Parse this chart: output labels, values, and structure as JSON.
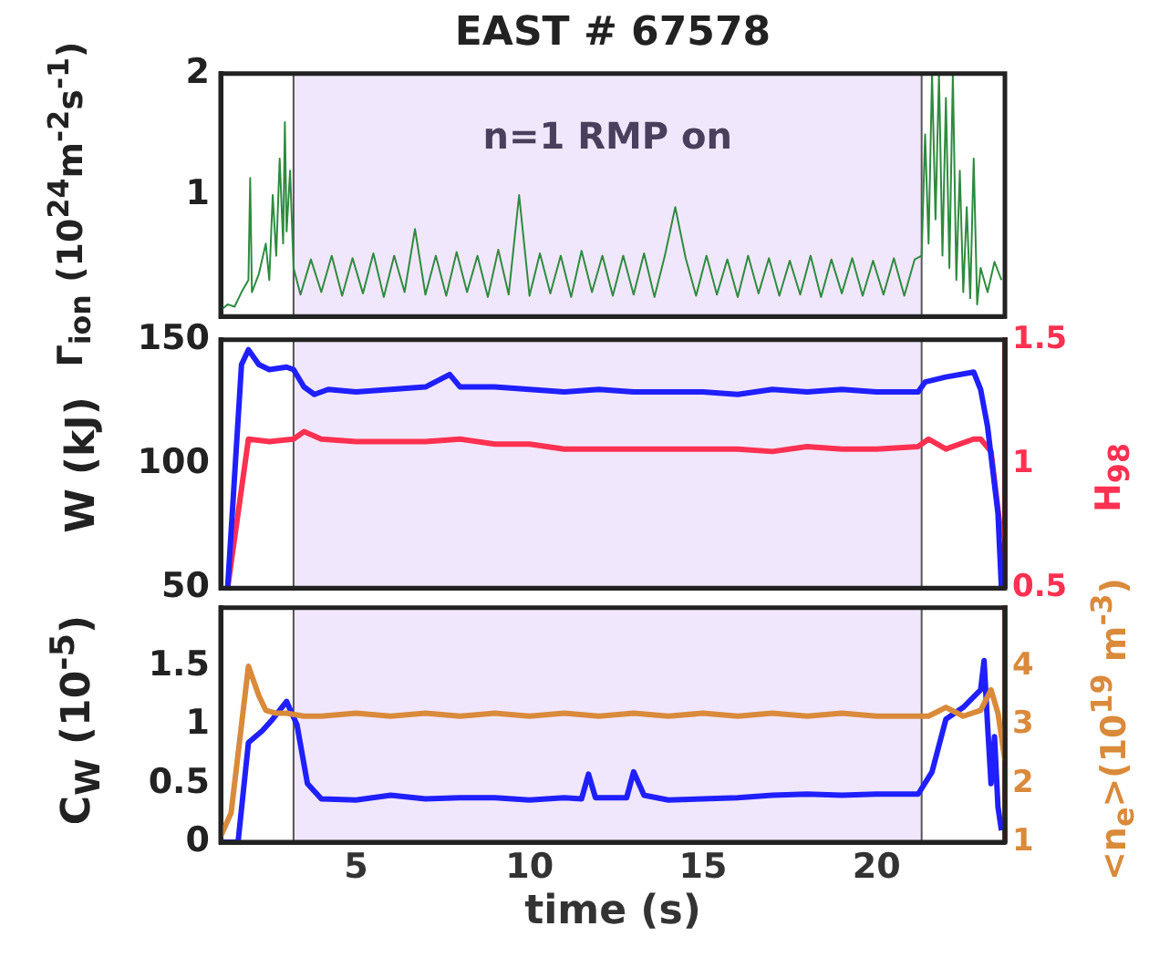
{
  "chart_data": [
    {
      "type": "line",
      "title": "EAST # 67578",
      "ylabel": "Γ$_{ion}$ (10$^{24}$m$^{-2}$s$^{-1}$)",
      "xlim": [
        1.1,
        23.7
      ],
      "ylim": [
        0,
        2
      ],
      "yticks": [
        1,
        2
      ],
      "tick_labels": "y",
      "bands": [
        {
          "axis": "x",
          "from": 3.2,
          "to": 21.3,
          "label": "n=1 RMP on",
          "color": "#f1e7fc"
        }
      ],
      "ref_lines": [
        {
          "axis": "x",
          "value": 3.2,
          "color": "#555555"
        },
        {
          "axis": "x",
          "value": 21.3,
          "color": "#555555"
        }
      ],
      "series": [
        {
          "color": "#2e8b3e",
          "x": [
            1.1,
            1.3,
            1.5,
            1.7,
            1.9,
            1.95,
            2.0,
            2.2,
            2.4,
            2.5,
            2.6,
            2.7,
            2.8,
            2.9,
            2.95,
            3.0,
            3.1,
            3.2,
            3.4,
            3.7,
            4.0,
            4.3,
            4.6,
            4.9,
            5.2,
            5.5,
            5.8,
            6.1,
            6.4,
            6.7,
            7.0,
            7.3,
            7.6,
            7.9,
            8.2,
            8.5,
            8.8,
            9.1,
            9.4,
            9.7,
            10.0,
            10.3,
            10.6,
            10.9,
            11.2,
            11.5,
            11.8,
            12.1,
            12.4,
            12.7,
            13.0,
            13.3,
            13.6,
            13.9,
            14.2,
            14.5,
            14.8,
            15.1,
            15.4,
            15.7,
            16.0,
            16.3,
            16.6,
            16.9,
            17.2,
            17.5,
            17.8,
            18.1,
            18.4,
            18.7,
            19.0,
            19.3,
            19.6,
            19.9,
            20.2,
            20.5,
            20.8,
            21.1,
            21.3,
            21.4,
            21.5,
            21.6,
            21.7,
            21.8,
            21.9,
            22.0,
            22.1,
            22.2,
            22.3,
            22.4,
            22.5,
            22.6,
            22.7,
            22.8,
            22.9,
            23.0,
            23.2,
            23.4,
            23.6
          ],
          "values": [
            0.05,
            0.1,
            0.08,
            0.2,
            0.3,
            1.14,
            0.2,
            0.35,
            0.6,
            0.3,
            1.0,
            0.5,
            1.3,
            0.6,
            1.6,
            0.7,
            1.2,
            0.4,
            0.18,
            0.47,
            0.2,
            0.5,
            0.17,
            0.48,
            0.19,
            0.52,
            0.16,
            0.5,
            0.2,
            0.72,
            0.18,
            0.5,
            0.17,
            0.53,
            0.2,
            0.5,
            0.16,
            0.55,
            0.18,
            1.0,
            0.17,
            0.52,
            0.19,
            0.5,
            0.16,
            0.54,
            0.2,
            0.5,
            0.17,
            0.5,
            0.18,
            0.52,
            0.16,
            0.5,
            0.9,
            0.48,
            0.17,
            0.5,
            0.18,
            0.47,
            0.16,
            0.5,
            0.19,
            0.48,
            0.17,
            0.46,
            0.18,
            0.5,
            0.16,
            0.47,
            0.19,
            0.48,
            0.17,
            0.46,
            0.18,
            0.48,
            0.17,
            0.47,
            0.5,
            1.5,
            0.6,
            2.0,
            0.8,
            2.0,
            0.5,
            1.8,
            0.4,
            2.0,
            0.3,
            1.2,
            0.2,
            0.9,
            0.15,
            1.3,
            0.1,
            0.4,
            0.2,
            0.45,
            0.3
          ]
        }
      ]
    },
    {
      "type": "line",
      "ylabel": "W (kJ)",
      "y2label": "H$_{98}$",
      "xlim": [
        1.1,
        23.7
      ],
      "ylim": [
        50,
        150
      ],
      "yticks": [
        50,
        100,
        150
      ],
      "y2lim": [
        0.5,
        1.5
      ],
      "y2ticks": [
        0.5,
        1,
        1.5
      ],
      "tick_labels": "y",
      "bands": [
        {
          "axis": "x",
          "from": 3.2,
          "to": 21.3,
          "color": "#f1e7fc"
        }
      ],
      "ref_lines": [
        {
          "axis": "x",
          "value": 3.2,
          "color": "#555555"
        },
        {
          "axis": "x",
          "value": 21.3,
          "color": "#555555"
        }
      ],
      "series": [
        {
          "color": "#1f1fff",
          "x": [
            1.3,
            1.7,
            1.9,
            2.2,
            2.5,
            3.0,
            3.2,
            3.5,
            3.8,
            4.2,
            5,
            6,
            7,
            7.7,
            8,
            9,
            10,
            11,
            12,
            13,
            14,
            15,
            16,
            17,
            18,
            19,
            20,
            21.2,
            21.4,
            22,
            22.8,
            23.0,
            23.2,
            23.5,
            23.6
          ],
          "values": [
            50,
            140,
            146,
            140,
            138,
            139,
            138,
            131,
            128,
            130,
            129,
            130,
            131,
            136,
            131,
            131,
            130,
            129,
            130,
            129,
            129,
            129,
            128,
            130,
            129,
            130,
            129,
            129,
            133,
            135,
            137,
            130,
            115,
            80,
            50
          ]
        },
        {
          "color": "#ff3050",
          "axis": "y2",
          "x": [
            1.3,
            1.9,
            2.5,
            3.2,
            3.5,
            4,
            5,
            6,
            7,
            8,
            9,
            10,
            11,
            12,
            13,
            14,
            15,
            16,
            17,
            18,
            19,
            20,
            21.2,
            21.5,
            22,
            22.8,
            23.0,
            23.3,
            23.6
          ],
          "values": [
            0.5,
            1.1,
            1.09,
            1.1,
            1.13,
            1.1,
            1.09,
            1.09,
            1.09,
            1.1,
            1.08,
            1.08,
            1.06,
            1.06,
            1.06,
            1.06,
            1.06,
            1.06,
            1.05,
            1.07,
            1.06,
            1.06,
            1.07,
            1.1,
            1.06,
            1.1,
            1.1,
            1.05,
            0.7
          ]
        }
      ]
    },
    {
      "type": "line",
      "ylabel": "C$_{W}$ (10$^{-5}$)",
      "y2label": "<n$_{e}$>(10$^{19}$ m$^{-3}$)",
      "xlabel": "time (s)",
      "xlim": [
        1.1,
        23.7
      ],
      "xticks": [
        5,
        10,
        15,
        20
      ],
      "ylim": [
        0,
        2
      ],
      "yticks": [
        0,
        0.5,
        1,
        1.5
      ],
      "y2lim": [
        1,
        5
      ],
      "y2ticks": [
        1,
        2,
        3,
        4
      ],
      "bands": [
        {
          "axis": "x",
          "from": 3.2,
          "to": 21.3,
          "color": "#f1e7fc"
        }
      ],
      "ref_lines": [
        {
          "axis": "x",
          "value": 3.2,
          "color": "#555555"
        },
        {
          "axis": "x",
          "value": 21.3,
          "color": "#555555"
        }
      ],
      "series": [
        {
          "color": "#d98a3a",
          "axis": "y2",
          "x": [
            1.1,
            1.4,
            1.6,
            1.9,
            2.2,
            2.4,
            2.7,
            3.0,
            3.5,
            4,
            5,
            6,
            7,
            8,
            9,
            10,
            11,
            12,
            13,
            14,
            15,
            16,
            17,
            18,
            19,
            20,
            21,
            21.5,
            22,
            22.5,
            23.0,
            23.3,
            23.5,
            23.7
          ],
          "values": [
            1.1,
            1.5,
            2.5,
            4.0,
            3.5,
            3.25,
            3.2,
            3.2,
            3.15,
            3.15,
            3.2,
            3.15,
            3.2,
            3.15,
            3.2,
            3.15,
            3.2,
            3.15,
            3.2,
            3.15,
            3.2,
            3.15,
            3.2,
            3.15,
            3.2,
            3.15,
            3.15,
            3.15,
            3.3,
            3.15,
            3.25,
            3.6,
            3.2,
            2.4
          ]
        },
        {
          "color": "#1f1fff",
          "x": [
            1.1,
            1.6,
            1.9,
            2.3,
            2.6,
            3.0,
            3.3,
            3.6,
            4,
            5,
            6,
            7,
            8,
            9,
            10,
            11,
            11.5,
            11.7,
            11.9,
            12.8,
            13.0,
            13.3,
            14,
            15,
            16,
            17,
            18,
            19,
            20,
            21.2,
            21.6,
            22.0,
            22.5,
            23.0,
            23.1,
            23.2,
            23.3,
            23.4,
            23.5,
            23.6
          ],
          "values": [
            0,
            0,
            0.85,
            0.95,
            1.05,
            1.2,
            1.0,
            0.5,
            0.37,
            0.36,
            0.4,
            0.37,
            0.38,
            0.38,
            0.36,
            0.38,
            0.37,
            0.58,
            0.38,
            0.38,
            0.6,
            0.4,
            0.36,
            0.37,
            0.38,
            0.4,
            0.41,
            0.4,
            0.41,
            0.41,
            0.6,
            1.05,
            1.15,
            1.3,
            1.55,
            1.0,
            0.5,
            0.9,
            0.3,
            0.1
          ]
        }
      ]
    }
  ]
}
